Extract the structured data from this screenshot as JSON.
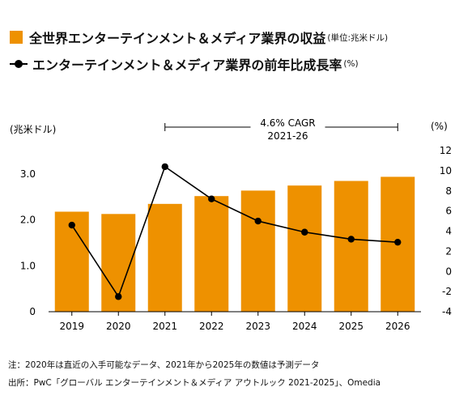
{
  "legend": {
    "bar_label": "全世界エンターテインメント＆メディア業界の収益",
    "bar_unit": "(単位:兆米ドル)",
    "line_label": "エンターテインメント＆メディア業界の前年比成長率",
    "line_unit": "(%)"
  },
  "axis_labels": {
    "left_unit": "(兆米ドル)",
    "right_unit": "(%)"
  },
  "cagr": {
    "line1": "4.6% CAGR",
    "line2": "2021-26"
  },
  "notes": {
    "note": "注：2020年は直近の入手可能なデータ、2021年から2025年の数値は予測データ",
    "source": "出所：PwC「グローバル エンターテインメント＆メディア アウトルック 2021-2025」、Omedia"
  },
  "colors": {
    "bar": "#EE9100",
    "line": "#000000"
  },
  "chart_data": {
    "type": "bar+line",
    "categories": [
      "2019",
      "2020",
      "2021",
      "2022",
      "2023",
      "2024",
      "2025",
      "2026"
    ],
    "series": [
      {
        "type": "bar",
        "axis": "left",
        "values": [
          2.18,
          2.13,
          2.35,
          2.52,
          2.64,
          2.75,
          2.85,
          2.94
        ]
      },
      {
        "type": "line",
        "axis": "right",
        "values": [
          4.6,
          -2.5,
          10.4,
          7.2,
          5.0,
          3.9,
          3.2,
          2.9
        ]
      }
    ],
    "y_left": {
      "min": 0,
      "max": 3.0,
      "ticks": [
        "0",
        "1.0",
        "2.0",
        "3.0"
      ],
      "tick_values": [
        0,
        1,
        2,
        3
      ]
    },
    "y_right": {
      "min": -4,
      "max": 12,
      "ticks": [
        "-4",
        "-2",
        "0",
        "2",
        "4",
        "6",
        "8",
        "10",
        "12"
      ],
      "tick_values": [
        -4,
        -2,
        0,
        2,
        4,
        6,
        8,
        10,
        12
      ]
    },
    "annotation": {
      "text": "4.6% CAGR 2021-26",
      "from": "2021",
      "to": "2026"
    },
    "grid": false
  }
}
